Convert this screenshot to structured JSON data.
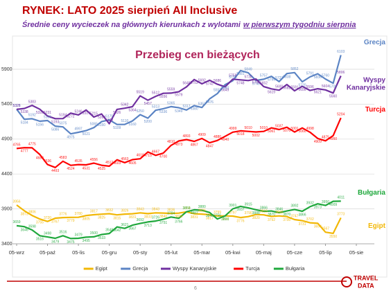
{
  "header": {
    "title": "RYNEK: LATO 2025 sierpień All Inclusive",
    "subtitle": [
      "Średnie ceny wycieczek na głównych kierunkach z wylotami",
      "w pierwszym tygodniu sierpnia"
    ]
  },
  "chart_data": {
    "type": "line",
    "title": "Przebieg cen bieżących",
    "categories": [
      "05-wrz",
      null,
      null,
      null,
      "05-paź",
      null,
      null,
      null,
      "05-lis",
      null,
      null,
      null,
      "05-gru",
      null,
      null,
      null,
      "05-sty",
      null,
      null,
      null,
      "05-lut",
      null,
      null,
      null,
      "05-mar",
      null,
      null,
      null,
      "05-kwi",
      null,
      null,
      null,
      "05-maj",
      null,
      null,
      null,
      "05-cze",
      null,
      null,
      null,
      "05-lip",
      null,
      null,
      null,
      "05-sie"
    ],
    "series": [
      {
        "name": "Egipt",
        "color": "#f2b705",
        "values": [
          3956,
          3873,
          3806,
          3755,
          3720,
          3767,
          3776,
          3779,
          3780,
          3805,
          3817,
          3825,
          3832,
          3815,
          3826,
          3831,
          3843,
          3833,
          3843,
          3840,
          3836,
          3839,
          3858,
          3831,
          3826,
          3817,
          3799,
          3800,
          3797,
          3776,
          3790,
          3820,
          3815,
          3792,
          3800,
          3790,
          3747,
          3731,
          3702,
          3694,
          3567,
          3550,
          3773,
          null,
          null
        ]
      },
      {
        "name": "Grecja",
        "color": "#5b84c4",
        "values": [
          5328,
          5184,
          5192,
          5156,
          5166,
          5086,
          5075,
          4975,
          4997,
          5021,
          5065,
          5150,
          5175,
          5109,
          5110,
          5160,
          5250,
          5200,
          5313,
          5336,
          5365,
          5349,
          5317,
          5380,
          5352,
          5476,
          5552,
          5680,
          5736,
          5881,
          5849,
          5740,
          5757,
          5799,
          5723,
          5838,
          5852,
          5720,
          5791,
          5836,
          5760,
          5700,
          6103,
          null,
          null
        ]
      },
      {
        "name": "Wyspy Kanaryjskie",
        "color": "#7030a0",
        "values": [
          5326,
          5338,
          5383,
          5328,
          5231,
          5193,
          5194,
          5272,
          5246,
          5317,
          5215,
          5260,
          5120,
          5326,
          5342,
          5364,
          5519,
          5457,
          5512,
          5556,
          5559,
          5579,
          5648,
          5753,
          5692,
          5742,
          5686,
          5649,
          5758,
          5748,
          5738,
          5760,
          5652,
          5619,
          5600,
          5682,
          5591,
          5656,
          5596,
          5621,
          5604,
          5560,
          5806,
          null,
          null
        ]
      },
      {
        "name": "Turcja",
        "color": "#ff0000",
        "values": [
          4765,
          4777,
          4775,
          4680,
          4536,
          4493,
          4583,
          4524,
          4535,
          4531,
          4556,
          4525,
          4512,
          4603,
          4563,
          4605,
          4618,
          4715,
          4667,
          4700,
          4810,
          4873,
          4893,
          4867,
          4909,
          4847,
          4880,
          4940,
          4999,
          5018,
          5010,
          5002,
          5010,
          5061,
          5037,
          5070,
          5001,
          5060,
          4998,
          4909,
          4875,
          4950,
          5204,
          null,
          null
        ]
      },
      {
        "name": "Bułgaria",
        "color": "#1fa83c",
        "values": [
          3659,
          3646,
          3598,
          3516,
          3498,
          3479,
          3516,
          3475,
          3479,
          3495,
          3500,
          3533,
          3548,
          3642,
          3621,
          3667,
          3692,
          3713,
          3726,
          3751,
          3784,
          3766,
          3859,
          3887,
          3880,
          3848,
          3756,
          3800,
          3901,
          3937,
          3915,
          3888,
          3866,
          3870,
          3846,
          3870,
          3892,
          3866,
          3932,
          3973,
          3950,
          4009,
          4011,
          null,
          null
        ]
      }
    ],
    "ylim": [
      3400,
      6200
    ],
    "yticks": [
      3400,
      3900,
      4400,
      4900,
      5400,
      5900
    ],
    "grid": true,
    "legend": "bottom"
  },
  "footer": {
    "page": "6",
    "logo": [
      "TRAVEL",
      "DATA"
    ]
  }
}
